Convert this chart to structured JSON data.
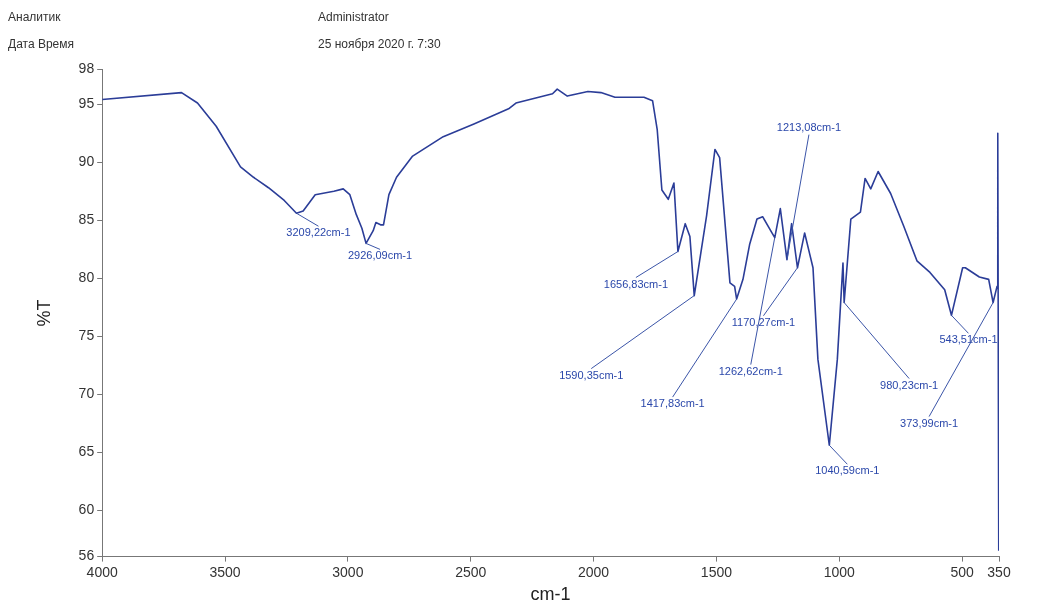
{
  "chart_data": {
    "type": "line",
    "xlabel": "cm-1",
    "ylabel": "%T",
    "xlim": [
      4000,
      350
    ],
    "xticks": [
      4000,
      3500,
      3000,
      2500,
      2000,
      1500,
      1000,
      500,
      350
    ],
    "ylim": [
      56,
      98
    ],
    "yticks": [
      98,
      95,
      90,
      85,
      80,
      75,
      70,
      65,
      60,
      56
    ],
    "series": [
      {
        "color": "#2b3d98",
        "x": [
          4000,
          3677,
          3612,
          3536,
          3437,
          3384,
          3323,
          3259,
          3209.22,
          3182,
          3133,
          3057,
          3019,
          2992,
          2966,
          2943,
          2926.09,
          2897,
          2886,
          2867,
          2855,
          2833,
          2802,
          2738,
          2612,
          2487,
          2346,
          2316,
          2167,
          2148,
          2107,
          2023,
          1970,
          1913,
          1795,
          1760,
          1741,
          1722,
          1696,
          1673,
          1656.83,
          1627,
          1608,
          1590.35,
          1540,
          1506,
          1487,
          1445,
          1426,
          1417.83,
          1392,
          1365,
          1335,
          1312,
          1274,
          1262.62,
          1240,
          1213.08,
          1194,
          1170.27,
          1141,
          1107,
          1087,
          1040.59,
          1008,
          985,
          980.23,
          953,
          914,
          895,
          872,
          842,
          791,
          738,
          684,
          631,
          571,
          543.51,
          498,
          487,
          430,
          392,
          373.99,
          358,
          355,
          351
        ],
        "values": [
          95.4,
          96.0,
          95.1,
          93.1,
          89.6,
          88.7,
          87.8,
          86.7,
          85.6,
          85.8,
          87.2,
          87.5,
          87.7,
          87.2,
          85.5,
          84.3,
          83.0,
          84.1,
          84.8,
          84.6,
          84.6,
          87.2,
          88.7,
          90.5,
          92.2,
          93.3,
          94.6,
          95.1,
          95.9,
          96.3,
          95.7,
          96.1,
          96.0,
          95.6,
          95.6,
          95.3,
          92.8,
          87.6,
          86.8,
          88.2,
          82.3,
          84.7,
          83.6,
          78.5,
          85.4,
          91.1,
          90.4,
          79.6,
          79.3,
          78.2,
          79.9,
          82.9,
          85.1,
          85.3,
          83.9,
          83.5,
          86.0,
          81.6,
          84.7,
          80.9,
          83.9,
          80.9,
          73.0,
          65.6,
          73.0,
          81.3,
          77.9,
          85.1,
          85.7,
          88.6,
          87.7,
          89.2,
          87.3,
          84.5,
          81.5,
          80.5,
          79.0,
          76.8,
          80.9,
          80.9,
          80.1,
          79.9,
          77.9,
          79.3,
          92.5,
          56.5
        ]
      }
    ],
    "annotations": [
      "Аналитик",
      "Administrator",
      "Дата Время",
      "25 ноября 2020 г. 7:30",
      {
        "text": "3209,22cm-1",
        "x": 3209.22,
        "y": 85.6
      },
      {
        "text": "2926,09cm-1",
        "x": 2926.09,
        "y": 83.0
      },
      {
        "text": "1656,83cm-1",
        "x": 1656.83,
        "y": 82.3
      },
      {
        "text": "1590,35cm-1",
        "x": 1590.35,
        "y": 78.5
      },
      {
        "text": "1417,83cm-1",
        "x": 1417.83,
        "y": 78.2
      },
      {
        "text": "1262,62cm-1",
        "x": 1262.62,
        "y": 83.5
      },
      {
        "text": "1213,08cm-1",
        "x": 1213.08,
        "y": 81.6
      },
      {
        "text": "1170,27cm-1",
        "x": 1170.27,
        "y": 80.9
      },
      {
        "text": "1040,59cm-1",
        "x": 1040.59,
        "y": 65.6
      },
      {
        "text": "980,23cm-1",
        "x": 980.23,
        "y": 77.9
      },
      {
        "text": "543,51cm-1",
        "x": 543.51,
        "y": 76.8
      },
      {
        "text": "373,99cm-1",
        "x": 373.99,
        "y": 77.9
      }
    ]
  }
}
